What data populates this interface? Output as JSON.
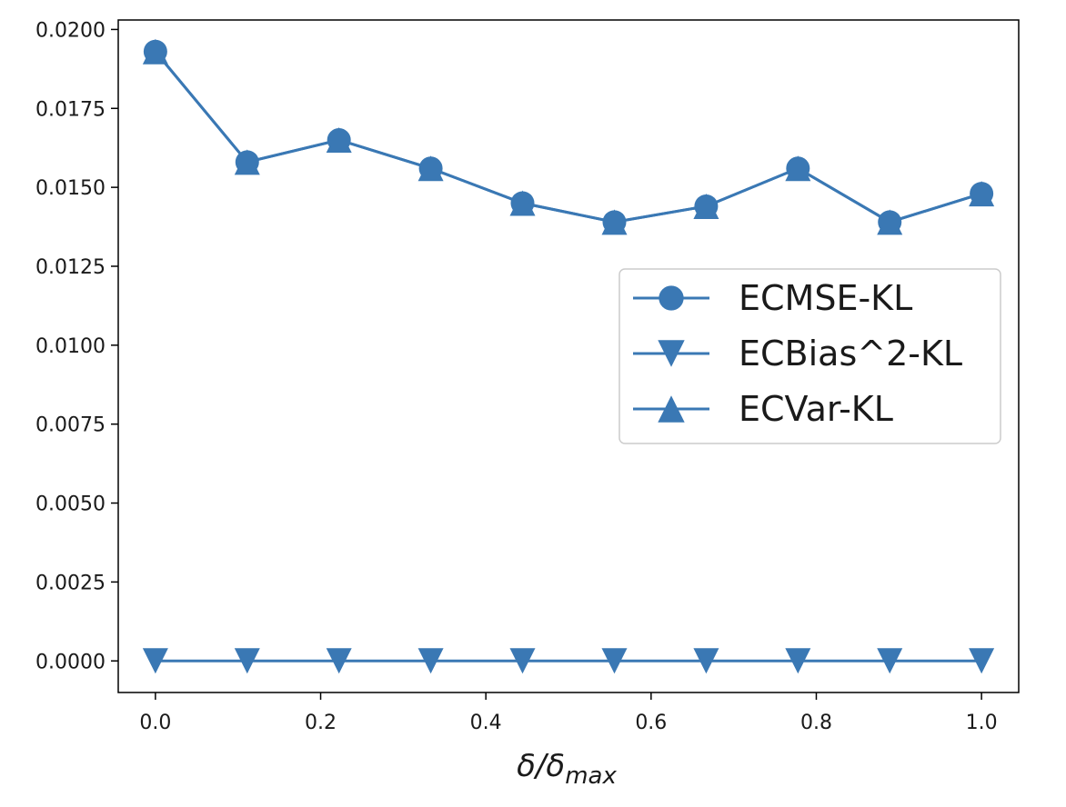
{
  "chart_data": {
    "type": "line",
    "title": "",
    "xlabel": "δ/δ",
    "xlabel_subscript": "max",
    "ylabel": "",
    "x": [
      0.0,
      0.1111,
      0.2222,
      0.3333,
      0.4444,
      0.5556,
      0.6667,
      0.7778,
      0.8889,
      1.0
    ],
    "xlim": [
      -0.045,
      1.045
    ],
    "ylim": [
      -0.001,
      0.0203
    ],
    "xticks": [
      0.0,
      0.2,
      0.4,
      0.6,
      0.8,
      1.0
    ],
    "xtick_labels": [
      "0.0",
      "0.2",
      "0.4",
      "0.6",
      "0.8",
      "1.0"
    ],
    "yticks": [
      0.0,
      0.0025,
      0.005,
      0.0075,
      0.01,
      0.0125,
      0.015,
      0.0175,
      0.02
    ],
    "ytick_labels": [
      "0.0000",
      "0.0025",
      "0.0050",
      "0.0075",
      "0.0100",
      "0.0125",
      "0.0150",
      "0.0175",
      "0.0200"
    ],
    "grid": false,
    "legend_position": "center-right",
    "color": "#3a78b4",
    "series": [
      {
        "name": "ECMSE-KL",
        "marker": "circle",
        "values": [
          0.0193,
          0.0158,
          0.0165,
          0.0156,
          0.0145,
          0.0139,
          0.0144,
          0.0156,
          0.0139,
          0.0148
        ]
      },
      {
        "name": "ECBias^2-KL",
        "marker": "triangle-down",
        "values": [
          0.0,
          0.0,
          0.0,
          0.0,
          0.0,
          0.0,
          0.0,
          0.0,
          0.0,
          0.0
        ]
      },
      {
        "name": "ECVar-KL",
        "marker": "triangle-up",
        "values": [
          0.0193,
          0.0158,
          0.0165,
          0.0156,
          0.0145,
          0.0139,
          0.0144,
          0.0156,
          0.0139,
          0.0148
        ]
      }
    ]
  }
}
